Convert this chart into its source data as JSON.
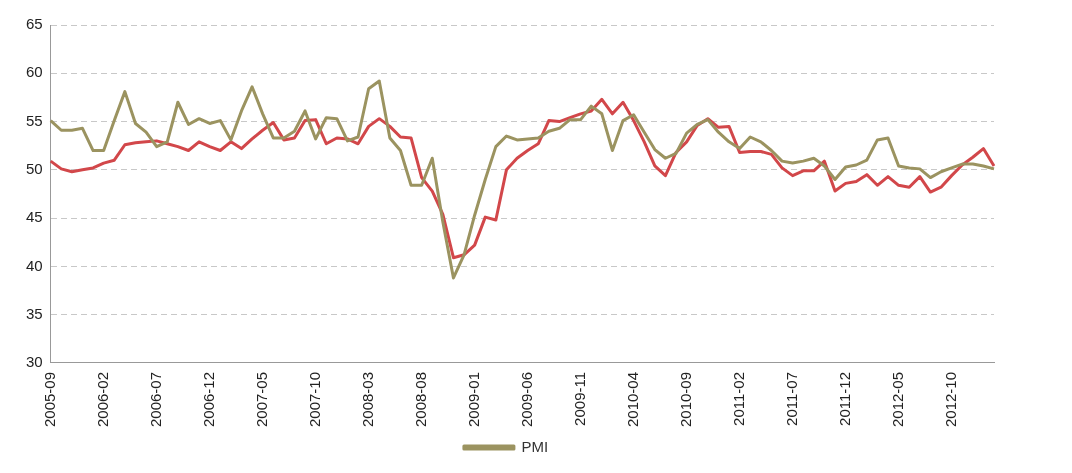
{
  "chart_data": {
    "type": "line",
    "categories": [
      "2005-09",
      null,
      null,
      null,
      null,
      "2006-02",
      null,
      null,
      null,
      null,
      "2006-07",
      null,
      null,
      null,
      null,
      "2006-12",
      null,
      null,
      null,
      null,
      "2007-05",
      null,
      null,
      null,
      null,
      "2007-10",
      null,
      null,
      null,
      null,
      "2008-03",
      null,
      null,
      null,
      null,
      "2008-08",
      null,
      null,
      null,
      null,
      "2009-01",
      null,
      null,
      null,
      null,
      "2009-06",
      null,
      null,
      null,
      null,
      "2009-11",
      null,
      null,
      null,
      null,
      "2010-04",
      null,
      null,
      null,
      null,
      "2010-09",
      null,
      null,
      null,
      null,
      "2011-02",
      null,
      null,
      null,
      null,
      "2011-07",
      null,
      null,
      null,
      null,
      "2011-12",
      null,
      null,
      null,
      null,
      "2012-05",
      null,
      null,
      null,
      null,
      "2012-10",
      null,
      null,
      null,
      null
    ],
    "series": [
      {
        "name": "PMI",
        "color": "#9b9360",
        "values": [
          55.1,
          54.1,
          54.1,
          54.3,
          52.0,
          52.0,
          55.1,
          58.1,
          54.8,
          53.9,
          52.4,
          52.9,
          57.0,
          54.7,
          55.3,
          54.8,
          55.1,
          53.1,
          56.1,
          58.6,
          55.8,
          53.3,
          53.3,
          54.0,
          56.1,
          53.2,
          55.4,
          55.3,
          53.0,
          53.4,
          58.4,
          59.2,
          53.3,
          52.0,
          48.4,
          48.4,
          51.2,
          44.6,
          38.8,
          41.2,
          45.3,
          49.0,
          52.4,
          53.5,
          53.1,
          53.2,
          53.3,
          54.0,
          54.3,
          55.2,
          55.2,
          56.6,
          55.8,
          52.0,
          55.1,
          55.7,
          53.9,
          52.1,
          51.2,
          51.7,
          53.8,
          54.7,
          55.2,
          53.9,
          52.9,
          52.2,
          53.4,
          52.9,
          52.0,
          50.9,
          50.7,
          50.9,
          51.2,
          50.4,
          49.0,
          50.3,
          50.5,
          51.0,
          53.1,
          53.3,
          50.4,
          50.2,
          50.1,
          49.2,
          49.8,
          50.2,
          50.6,
          50.6,
          50.4,
          50.1
        ]
      },
      {
        "color": "#d2474a",
        "values": [
          50.9,
          50.1,
          49.8,
          50.0,
          50.2,
          50.7,
          51.0,
          52.6,
          52.8,
          52.9,
          53.0,
          52.7,
          52.4,
          52.0,
          52.9,
          52.4,
          52.0,
          52.9,
          52.2,
          53.2,
          54.1,
          54.9,
          53.1,
          53.3,
          55.1,
          55.2,
          52.7,
          53.3,
          53.2,
          52.7,
          54.5,
          55.3,
          54.5,
          53.4,
          53.3,
          49.2,
          47.8,
          45.4,
          40.9,
          41.2,
          42.2,
          45.1,
          44.8,
          50.0,
          51.2,
          52.0,
          52.7,
          55.1,
          55.0,
          55.4,
          55.8,
          56.1,
          57.3,
          55.8,
          57.0,
          55.1,
          52.9,
          50.4,
          49.4,
          51.8,
          52.9,
          54.6,
          55.3,
          54.4,
          54.5,
          51.8,
          51.9,
          51.9,
          51.6,
          50.2,
          49.4,
          49.9,
          49.9,
          50.9,
          47.8,
          48.6,
          48.8,
          49.5,
          48.4,
          49.3,
          48.4,
          48.2,
          49.3,
          47.7,
          48.2,
          49.4,
          50.5,
          51.3,
          52.2,
          50.4
        ]
      }
    ],
    "ylim": [
      30,
      65
    ],
    "yticks": [
      30,
      35,
      40,
      45,
      50,
      55,
      60,
      65
    ],
    "grid": "y",
    "legend": "bottom",
    "marker": "none",
    "line_style": "solid"
  }
}
